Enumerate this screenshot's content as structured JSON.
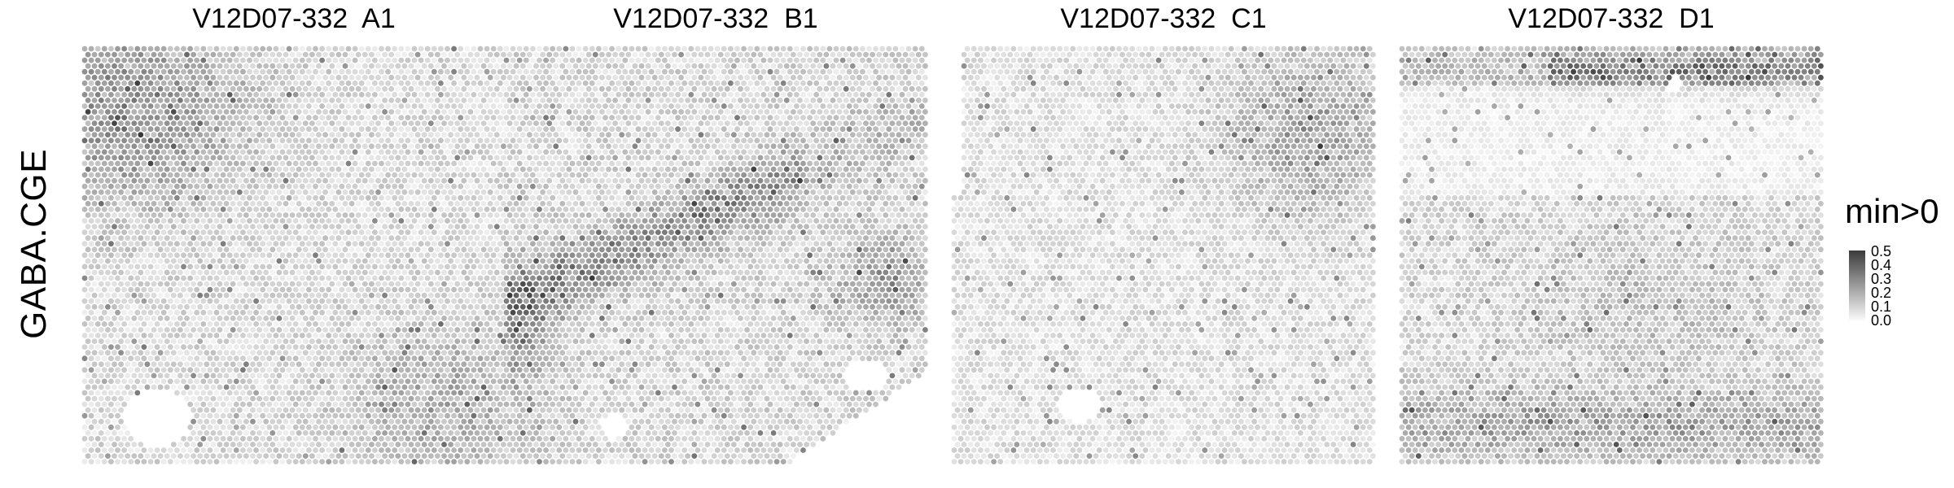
{
  "row_label": "GABA.CGE",
  "legend": {
    "title": "min>0",
    "ticks": [
      "0.5",
      "0.4",
      "0.3",
      "0.2",
      "0.1",
      "0.0"
    ],
    "colors": {
      "low": "#ffffff",
      "high": "#3b3b3b"
    }
  },
  "panels": [
    {
      "title": "V12D07-332  A1"
    },
    {
      "title": "V12D07-332  B1"
    },
    {
      "title": "V12D07-332  C1"
    },
    {
      "title": "V12D07-332  D1"
    }
  ],
  "chart_data": {
    "type": "heatmap",
    "subtype": "spatial spot map (hexagonal grid), grayscale intensity",
    "feature": "GABA.CGE",
    "color_scale": {
      "title": "min>0",
      "range": [
        0.0,
        0.5
      ],
      "ticks": [
        0.0,
        0.1,
        0.2,
        0.3,
        0.4,
        0.5
      ],
      "low": "#ffffff",
      "high": "#3b3b3b"
    },
    "facets": [
      {
        "title": "V12D07-332  A1",
        "mean_value": 0.15,
        "high_regions": [
          "upper-left",
          "lower-right"
        ],
        "empty_regions": [
          "lower-left"
        ]
      },
      {
        "title": "V12D07-332  B1",
        "mean_value": 0.18,
        "high_regions": [
          "diagonal band center-left",
          "right-center",
          "left-middle"
        ],
        "empty_regions": [
          "bottom-right corner"
        ]
      },
      {
        "title": "V12D07-332  C1",
        "mean_value": 0.13,
        "high_regions": [
          "upper-right"
        ],
        "empty_regions": [
          "lower-center"
        ]
      },
      {
        "title": "V12D07-332  D1",
        "mean_value": 0.17,
        "high_regions": [
          "top strip (right half)",
          "bottom band"
        ],
        "empty_regions": []
      }
    ]
  }
}
